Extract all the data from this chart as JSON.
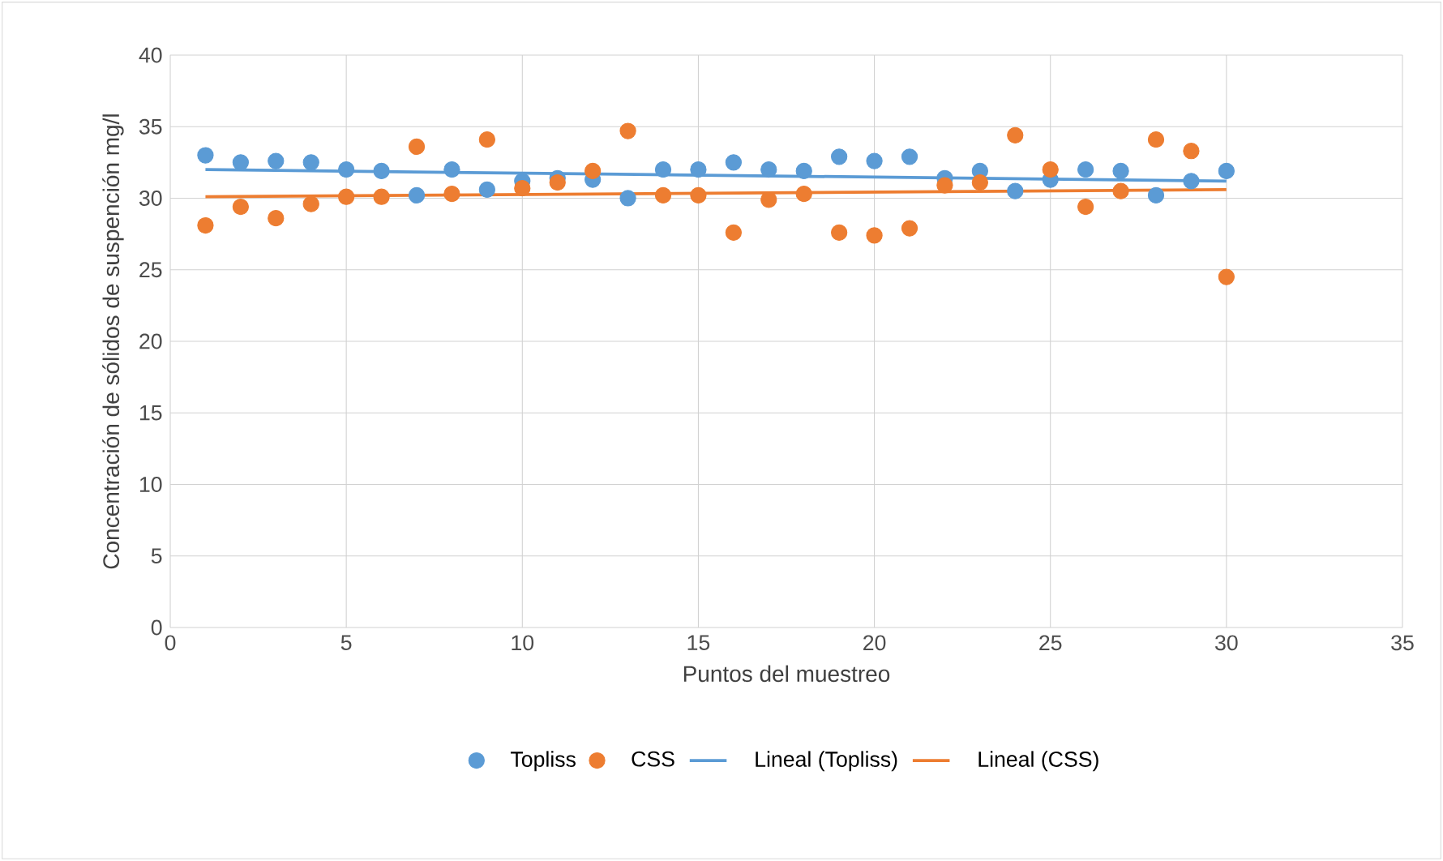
{
  "chart_data": {
    "type": "scatter",
    "xlabel": "Puntos del muestreo",
    "ylabel": "Concentración de sólidos de suspención mg/l",
    "xlim": [
      0,
      35
    ],
    "xticks": [
      0,
      5,
      10,
      15,
      20,
      25,
      30,
      35
    ],
    "ylim": [
      0,
      40
    ],
    "yticks": [
      0,
      5,
      10,
      15,
      20,
      25,
      30,
      35,
      40
    ],
    "grid": true,
    "legend": "bottom",
    "series": [
      {
        "name": "Topliss",
        "marker": "circle",
        "color": "#5b9bd5",
        "x": [
          1,
          2,
          3,
          4,
          5,
          6,
          7,
          8,
          9,
          10,
          11,
          12,
          13,
          14,
          15,
          16,
          17,
          18,
          19,
          20,
          21,
          22,
          23,
          24,
          25,
          26,
          27,
          28,
          29,
          30
        ],
        "values": [
          33.0,
          32.5,
          32.6,
          32.5,
          32.0,
          31.9,
          30.2,
          32.0,
          30.6,
          31.2,
          31.4,
          31.3,
          30.0,
          32.0,
          32.0,
          32.5,
          32.0,
          31.9,
          32.9,
          32.6,
          32.9,
          31.4,
          31.9,
          30.5,
          31.3,
          32.0,
          31.9,
          30.2,
          31.2,
          31.9
        ]
      },
      {
        "name": "CSS",
        "marker": "circle",
        "color": "#ed7d31",
        "x": [
          1,
          2,
          3,
          4,
          5,
          6,
          7,
          8,
          9,
          10,
          11,
          12,
          13,
          14,
          15,
          16,
          17,
          18,
          19,
          20,
          21,
          22,
          23,
          24,
          25,
          26,
          27,
          28,
          29,
          30
        ],
        "values": [
          28.1,
          29.4,
          28.6,
          29.6,
          30.1,
          30.1,
          33.6,
          30.3,
          34.1,
          30.7,
          31.1,
          31.9,
          34.7,
          30.2,
          30.2,
          27.6,
          29.9,
          30.3,
          27.6,
          27.4,
          27.9,
          30.9,
          31.1,
          34.4,
          32.0,
          29.4,
          30.5,
          34.1,
          33.3,
          24.5
        ]
      },
      {
        "name": "Lineal (Topliss)",
        "type": "line",
        "marker": "none",
        "color": "#5b9bd5",
        "x": [
          1,
          30
        ],
        "values": [
          32.0,
          31.2
        ]
      },
      {
        "name": "Lineal (CSS)",
        "type": "line",
        "marker": "none",
        "color": "#ed7d31",
        "x": [
          1,
          30
        ],
        "values": [
          30.1,
          30.6
        ]
      }
    ]
  }
}
